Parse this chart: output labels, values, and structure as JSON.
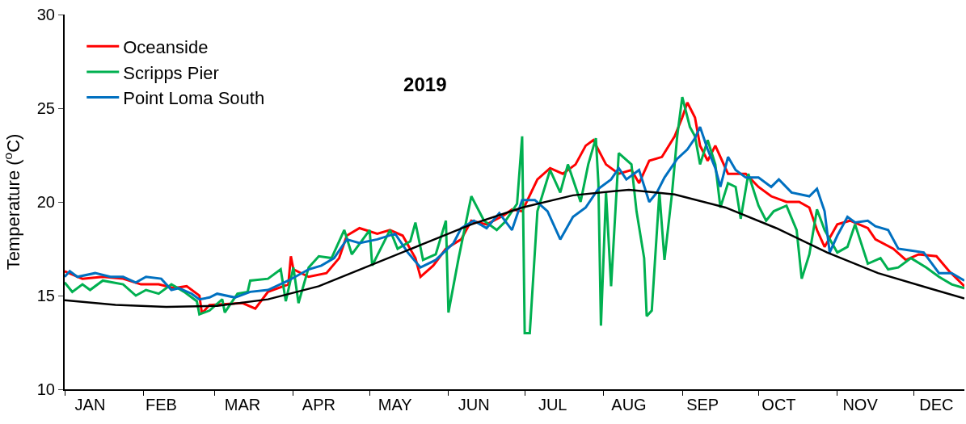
{
  "chart_data": {
    "type": "line",
    "title": "2019",
    "ylabel": "Temperature ($^{o}$C)",
    "xlim": [
      "2019-01-01",
      "2019-12-21"
    ],
    "ylim": [
      10,
      30
    ],
    "yticks": [
      10,
      15,
      20,
      25,
      30
    ],
    "xticks": [
      {
        "value": "2019-01-01",
        "label": null
      },
      {
        "value": "2019-02-01",
        "label": null
      },
      {
        "value": "2019-03-01",
        "label": null
      },
      {
        "value": "2019-04-01",
        "label": null
      },
      {
        "value": "2019-05-01",
        "label": null
      },
      {
        "value": "2019-06-01",
        "label": null
      },
      {
        "value": "2019-07-01",
        "label": null
      },
      {
        "value": "2019-08-01",
        "label": null
      },
      {
        "value": "2019-09-01",
        "label": null
      },
      {
        "value": "2019-10-01",
        "label": null
      },
      {
        "value": "2019-11-01",
        "label": null
      },
      {
        "value": "2019-12-01",
        "label": null
      },
      {
        "value": "2019-01-11",
        "label": "JAN"
      },
      {
        "value": "2019-02-08",
        "label": "FEB"
      },
      {
        "value": "2019-03-12",
        "label": "MAR"
      },
      {
        "value": "2019-04-11",
        "label": "APR"
      },
      {
        "value": "2019-05-11",
        "label": "MAY"
      },
      {
        "value": "2019-06-11",
        "label": "JUN"
      },
      {
        "value": "2019-07-12",
        "label": "JUL"
      },
      {
        "value": "2019-08-11",
        "label": "AUG"
      },
      {
        "value": "2019-09-09",
        "label": "SEP"
      },
      {
        "value": "2019-10-09",
        "label": "OCT"
      },
      {
        "value": "2019-11-10",
        "label": "NOV"
      },
      {
        "value": "2019-12-10",
        "label": "DEC"
      }
    ],
    "grid": false,
    "legend": "top left",
    "marker": "none",
    "line_style": "solid",
    "series": [
      {
        "name": "Oceanside",
        "color": "#ff0000",
        "x": [
          "2019-01-01",
          "2019-01-08",
          "2019-01-16",
          "2019-01-24",
          "2019-01-31",
          "2019-02-07",
          "2019-02-13",
          "2019-02-18",
          "2019-02-23",
          "2019-02-24",
          "2019-02-27",
          "2019-03-12",
          "2019-03-17",
          "2019-03-22",
          "2019-03-30",
          "2019-03-31",
          "2019-04-01",
          "2019-04-07",
          "2019-04-14",
          "2019-04-19",
          "2019-04-22",
          "2019-04-27",
          "2019-05-04",
          "2019-05-09",
          "2019-05-14",
          "2019-05-19",
          "2019-05-21",
          "2019-05-26",
          "2019-05-31",
          "2019-06-06",
          "2019-06-10",
          "2019-06-16",
          "2019-06-23",
          "2019-06-26",
          "2019-06-30",
          "2019-07-06",
          "2019-07-11",
          "2019-07-16",
          "2019-07-21",
          "2019-07-25",
          "2019-07-28",
          "2019-08-02",
          "2019-08-07",
          "2019-08-12",
          "2019-08-15",
          "2019-08-19",
          "2019-08-24",
          "2019-08-29",
          "2019-09-01",
          "2019-09-03",
          "2019-09-06",
          "2019-09-08",
          "2019-09-11",
          "2019-09-14",
          "2019-09-19",
          "2019-09-26",
          "2019-10-01",
          "2019-10-06",
          "2019-10-12",
          "2019-10-17",
          "2019-10-21",
          "2019-10-24",
          "2019-10-27",
          "2019-11-01",
          "2019-11-06",
          "2019-11-13",
          "2019-11-16",
          "2019-11-23",
          "2019-11-28",
          "2019-12-03",
          "2019-12-10",
          "2019-12-15",
          "2019-12-21"
        ],
        "values": [
          16.3,
          15.9,
          16.0,
          15.9,
          15.6,
          15.6,
          15.4,
          15.5,
          15.0,
          14.05,
          14.5,
          14.6,
          14.3,
          15.2,
          15.6,
          17.1,
          16.4,
          16.0,
          16.2,
          17.0,
          18.2,
          18.6,
          18.3,
          18.5,
          18.2,
          17.0,
          16.0,
          16.6,
          17.5,
          18.0,
          19.0,
          18.8,
          19.3,
          19.6,
          19.5,
          21.2,
          21.8,
          21.5,
          22.0,
          23.0,
          23.3,
          22.0,
          21.5,
          21.7,
          21.0,
          22.2,
          22.4,
          23.5,
          24.5,
          25.3,
          24.5,
          23.0,
          22.2,
          23.0,
          21.5,
          21.5,
          20.8,
          20.3,
          20.0,
          20.0,
          19.7,
          18.5,
          17.6,
          18.8,
          19.0,
          18.6,
          18.0,
          17.5,
          16.9,
          17.2,
          17.1,
          16.3,
          15.5
        ]
      },
      {
        "name": "Scripps Pier",
        "color": "#00b050",
        "x": [
          "2019-01-01",
          "2019-01-04",
          "2019-01-08",
          "2019-01-11",
          "2019-01-16",
          "2019-01-24",
          "2019-01-29",
          "2019-02-02",
          "2019-02-07",
          "2019-02-12",
          "2019-02-17",
          "2019-02-22",
          "2019-02-23",
          "2019-02-27",
          "2019-03-04",
          "2019-03-05",
          "2019-03-10",
          "2019-03-14",
          "2019-03-15",
          "2019-03-22",
          "2019-03-27",
          "2019-03-29",
          "2019-04-01",
          "2019-04-03",
          "2019-04-07",
          "2019-04-11",
          "2019-04-16",
          "2019-04-21",
          "2019-04-24",
          "2019-05-01",
          "2019-05-02",
          "2019-05-09",
          "2019-05-12",
          "2019-05-17",
          "2019-05-19",
          "2019-05-22",
          "2019-05-27",
          "2019-05-31",
          "2019-06-01",
          "2019-06-05",
          "2019-06-10",
          "2019-06-15",
          "2019-06-20",
          "2019-06-23",
          "2019-06-28",
          "2019-06-30",
          "2019-07-01",
          "2019-07-03",
          "2019-07-06",
          "2019-07-11",
          "2019-07-15",
          "2019-07-18",
          "2019-07-23",
          "2019-07-26",
          "2019-07-29",
          "2019-07-30",
          "2019-07-31",
          "2019-08-02",
          "2019-08-04",
          "2019-08-07",
          "2019-08-12",
          "2019-08-14",
          "2019-08-17",
          "2019-08-18",
          "2019-08-20",
          "2019-08-23",
          "2019-08-25",
          "2019-08-28",
          "2019-08-30",
          "2019-09-01",
          "2019-09-04",
          "2019-09-06",
          "2019-09-08",
          "2019-09-11",
          "2019-09-14",
          "2019-09-16",
          "2019-09-19",
          "2019-09-22",
          "2019-09-24",
          "2019-09-27",
          "2019-10-01",
          "2019-10-04",
          "2019-10-07",
          "2019-10-12",
          "2019-10-16",
          "2019-10-18",
          "2019-10-21",
          "2019-10-24",
          "2019-10-27",
          "2019-11-01",
          "2019-11-05",
          "2019-11-08",
          "2019-11-13",
          "2019-11-18",
          "2019-11-21",
          "2019-11-25",
          "2019-11-30",
          "2019-12-06",
          "2019-12-11",
          "2019-12-16",
          "2019-12-21"
        ],
        "values": [
          15.7,
          15.2,
          15.6,
          15.3,
          15.8,
          15.6,
          15.0,
          15.3,
          15.1,
          15.6,
          15.2,
          14.7,
          14.0,
          14.2,
          14.8,
          14.1,
          15.1,
          15.2,
          15.8,
          15.9,
          16.4,
          14.7,
          16.5,
          14.6,
          16.5,
          17.1,
          17.0,
          18.5,
          17.2,
          18.5,
          16.6,
          18.5,
          17.5,
          17.9,
          18.9,
          16.9,
          17.2,
          19.0,
          14.1,
          17.0,
          20.3,
          19.0,
          18.5,
          18.9,
          19.9,
          23.5,
          13.0,
          13.0,
          19.5,
          21.7,
          20.5,
          22.0,
          20.0,
          22.0,
          23.4,
          21.0,
          13.4,
          20.5,
          15.5,
          22.6,
          22.0,
          19.5,
          17.0,
          13.9,
          14.2,
          20.5,
          16.9,
          20.5,
          23.5,
          25.6,
          24.0,
          23.5,
          22.0,
          23.3,
          22.0,
          19.7,
          21.0,
          20.8,
          19.1,
          21.5,
          19.8,
          19.0,
          19.5,
          19.8,
          18.5,
          15.9,
          17.2,
          19.6,
          18.5,
          17.3,
          17.6,
          18.8,
          16.7,
          17.0,
          16.4,
          16.5,
          17.0,
          16.5,
          16.0,
          15.6,
          15.4
        ]
      },
      {
        "name": "Point Loma South",
        "color": "#0070c0",
        "x": [
          "2019-01-01",
          "2019-01-03",
          "2019-01-06",
          "2019-01-13",
          "2019-01-19",
          "2019-01-24",
          "2019-01-29",
          "2019-02-02",
          "2019-02-08",
          "2019-02-12",
          "2019-02-15",
          "2019-02-20",
          "2019-02-23",
          "2019-02-27",
          "2019-03-02",
          "2019-03-09",
          "2019-03-15",
          "2019-03-22",
          "2019-03-30",
          "2019-04-07",
          "2019-04-12",
          "2019-04-17",
          "2019-04-22",
          "2019-04-27",
          "2019-05-04",
          "2019-05-11",
          "2019-05-16",
          "2019-05-21",
          "2019-05-27",
          "2019-06-03",
          "2019-06-06",
          "2019-06-11",
          "2019-06-16",
          "2019-06-21",
          "2019-06-26",
          "2019-06-30",
          "2019-07-05",
          "2019-07-10",
          "2019-07-15",
          "2019-07-20",
          "2019-07-25",
          "2019-07-30",
          "2019-08-04",
          "2019-08-07",
          "2019-08-10",
          "2019-08-15",
          "2019-08-19",
          "2019-08-22",
          "2019-08-25",
          "2019-08-30",
          "2019-09-03",
          "2019-09-06",
          "2019-09-08",
          "2019-09-11",
          "2019-09-14",
          "2019-09-16",
          "2019-09-19",
          "2019-09-22",
          "2019-09-26",
          "2019-10-01",
          "2019-10-06",
          "2019-10-09",
          "2019-10-14",
          "2019-10-21",
          "2019-10-24",
          "2019-10-27",
          "2019-10-29",
          "2019-11-01",
          "2019-11-05",
          "2019-11-08",
          "2019-11-13",
          "2019-11-16",
          "2019-11-21",
          "2019-11-25",
          "2019-11-30",
          "2019-12-05",
          "2019-12-11",
          "2019-12-16",
          "2019-12-21"
        ],
        "values": [
          16.0,
          16.3,
          16.0,
          16.2,
          16.0,
          16.0,
          15.7,
          16.0,
          15.9,
          15.3,
          15.4,
          15.1,
          14.8,
          14.9,
          15.1,
          14.9,
          15.2,
          15.3,
          15.8,
          16.4,
          16.6,
          17.0,
          18.0,
          17.8,
          18.0,
          18.3,
          17.3,
          16.5,
          16.9,
          17.8,
          18.6,
          19.0,
          18.6,
          19.4,
          18.5,
          20.1,
          20.1,
          19.5,
          18.0,
          19.2,
          19.7,
          20.7,
          21.2,
          21.8,
          21.2,
          21.7,
          20.0,
          20.5,
          21.3,
          22.3,
          22.8,
          23.4,
          24.0,
          22.8,
          21.8,
          20.8,
          22.4,
          21.7,
          21.3,
          21.3,
          20.8,
          21.2,
          20.5,
          20.3,
          20.7,
          19.5,
          17.3,
          18.2,
          19.2,
          18.9,
          19.0,
          18.7,
          18.5,
          17.5,
          17.4,
          17.3,
          16.2,
          16.2,
          15.8
        ]
      },
      {
        "type": "line",
        "color": "#000000",
        "x": [
          "2019-01-01",
          "2019-01-21",
          "2019-02-10",
          "2019-03-02",
          "2019-03-22",
          "2019-04-11",
          "2019-05-01",
          "2019-05-21",
          "2019-06-10",
          "2019-06-30",
          "2019-07-20",
          "2019-08-11",
          "2019-08-29",
          "2019-09-18",
          "2019-10-08",
          "2019-10-28",
          "2019-11-17",
          "2019-12-07",
          "2019-12-21"
        ],
        "values": [
          14.75,
          14.5,
          14.4,
          14.45,
          14.8,
          15.5,
          16.6,
          17.7,
          18.8,
          19.7,
          20.35,
          20.65,
          20.4,
          19.7,
          18.6,
          17.3,
          16.2,
          15.4,
          14.85
        ]
      }
    ]
  }
}
